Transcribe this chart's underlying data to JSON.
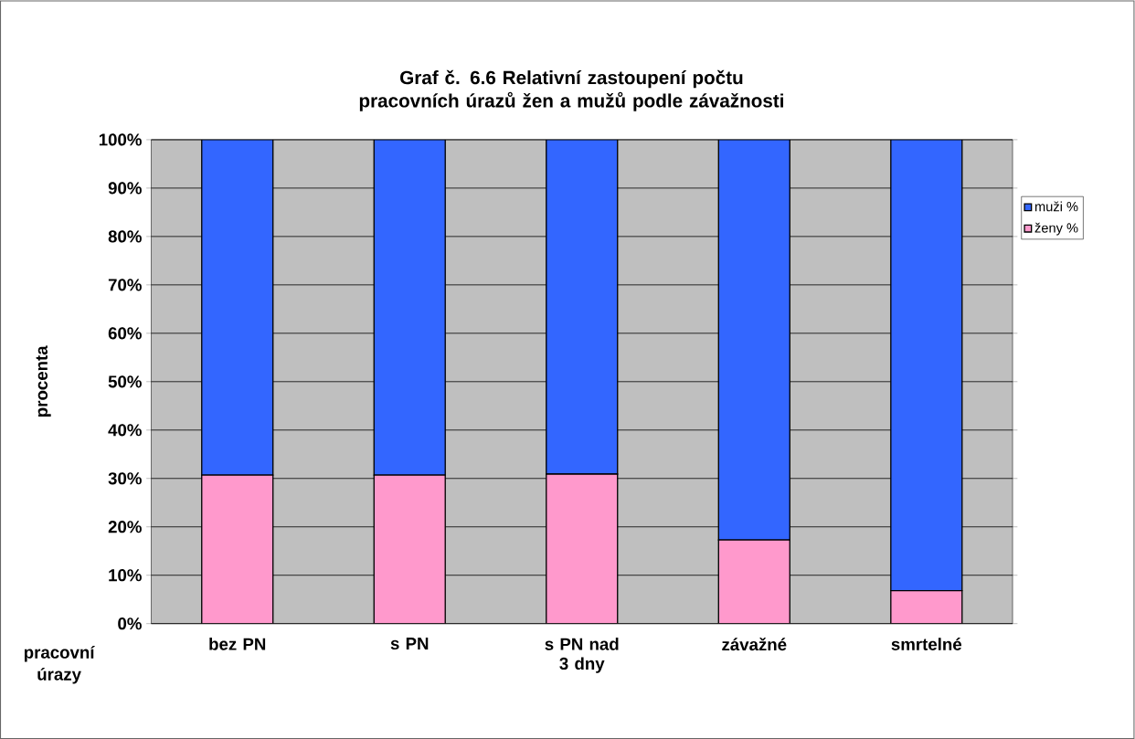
{
  "chart_data": {
    "type": "bar",
    "stacked": true,
    "title": "Graf č. 6.6 Relativní zastoupení počtu pracovních úrazů žen a mužů podle závažnosti",
    "xlabel": "pracovní úrazy",
    "ylabel": "procenta",
    "categories": [
      "bez PN",
      "s PN",
      "s PN nad 3 dny",
      "závažné",
      "smrtelné"
    ],
    "series": [
      {
        "name": "ženy %",
        "color": "#ff99cc",
        "values": [
          30.7,
          30.7,
          30.9,
          17.3,
          6.8
        ]
      },
      {
        "name": "muži %",
        "color": "#3366ff",
        "values": [
          69.3,
          69.3,
          69.1,
          82.7,
          93.2
        ]
      }
    ],
    "ylim": [
      0,
      100
    ],
    "yticks": [
      {
        "value": 0,
        "label": "0%"
      },
      {
        "value": 10,
        "label": "10%"
      },
      {
        "value": 20,
        "label": "20%"
      },
      {
        "value": 30,
        "label": "30%"
      },
      {
        "value": 40,
        "label": "40%"
      },
      {
        "value": 50,
        "label": "50%"
      },
      {
        "value": 60,
        "label": "60%"
      },
      {
        "value": 70,
        "label": "70%"
      },
      {
        "value": 80,
        "label": "80%"
      },
      {
        "value": 90,
        "label": "90%"
      },
      {
        "value": 100,
        "label": "100%"
      }
    ],
    "grid": "y",
    "legend": "right"
  }
}
